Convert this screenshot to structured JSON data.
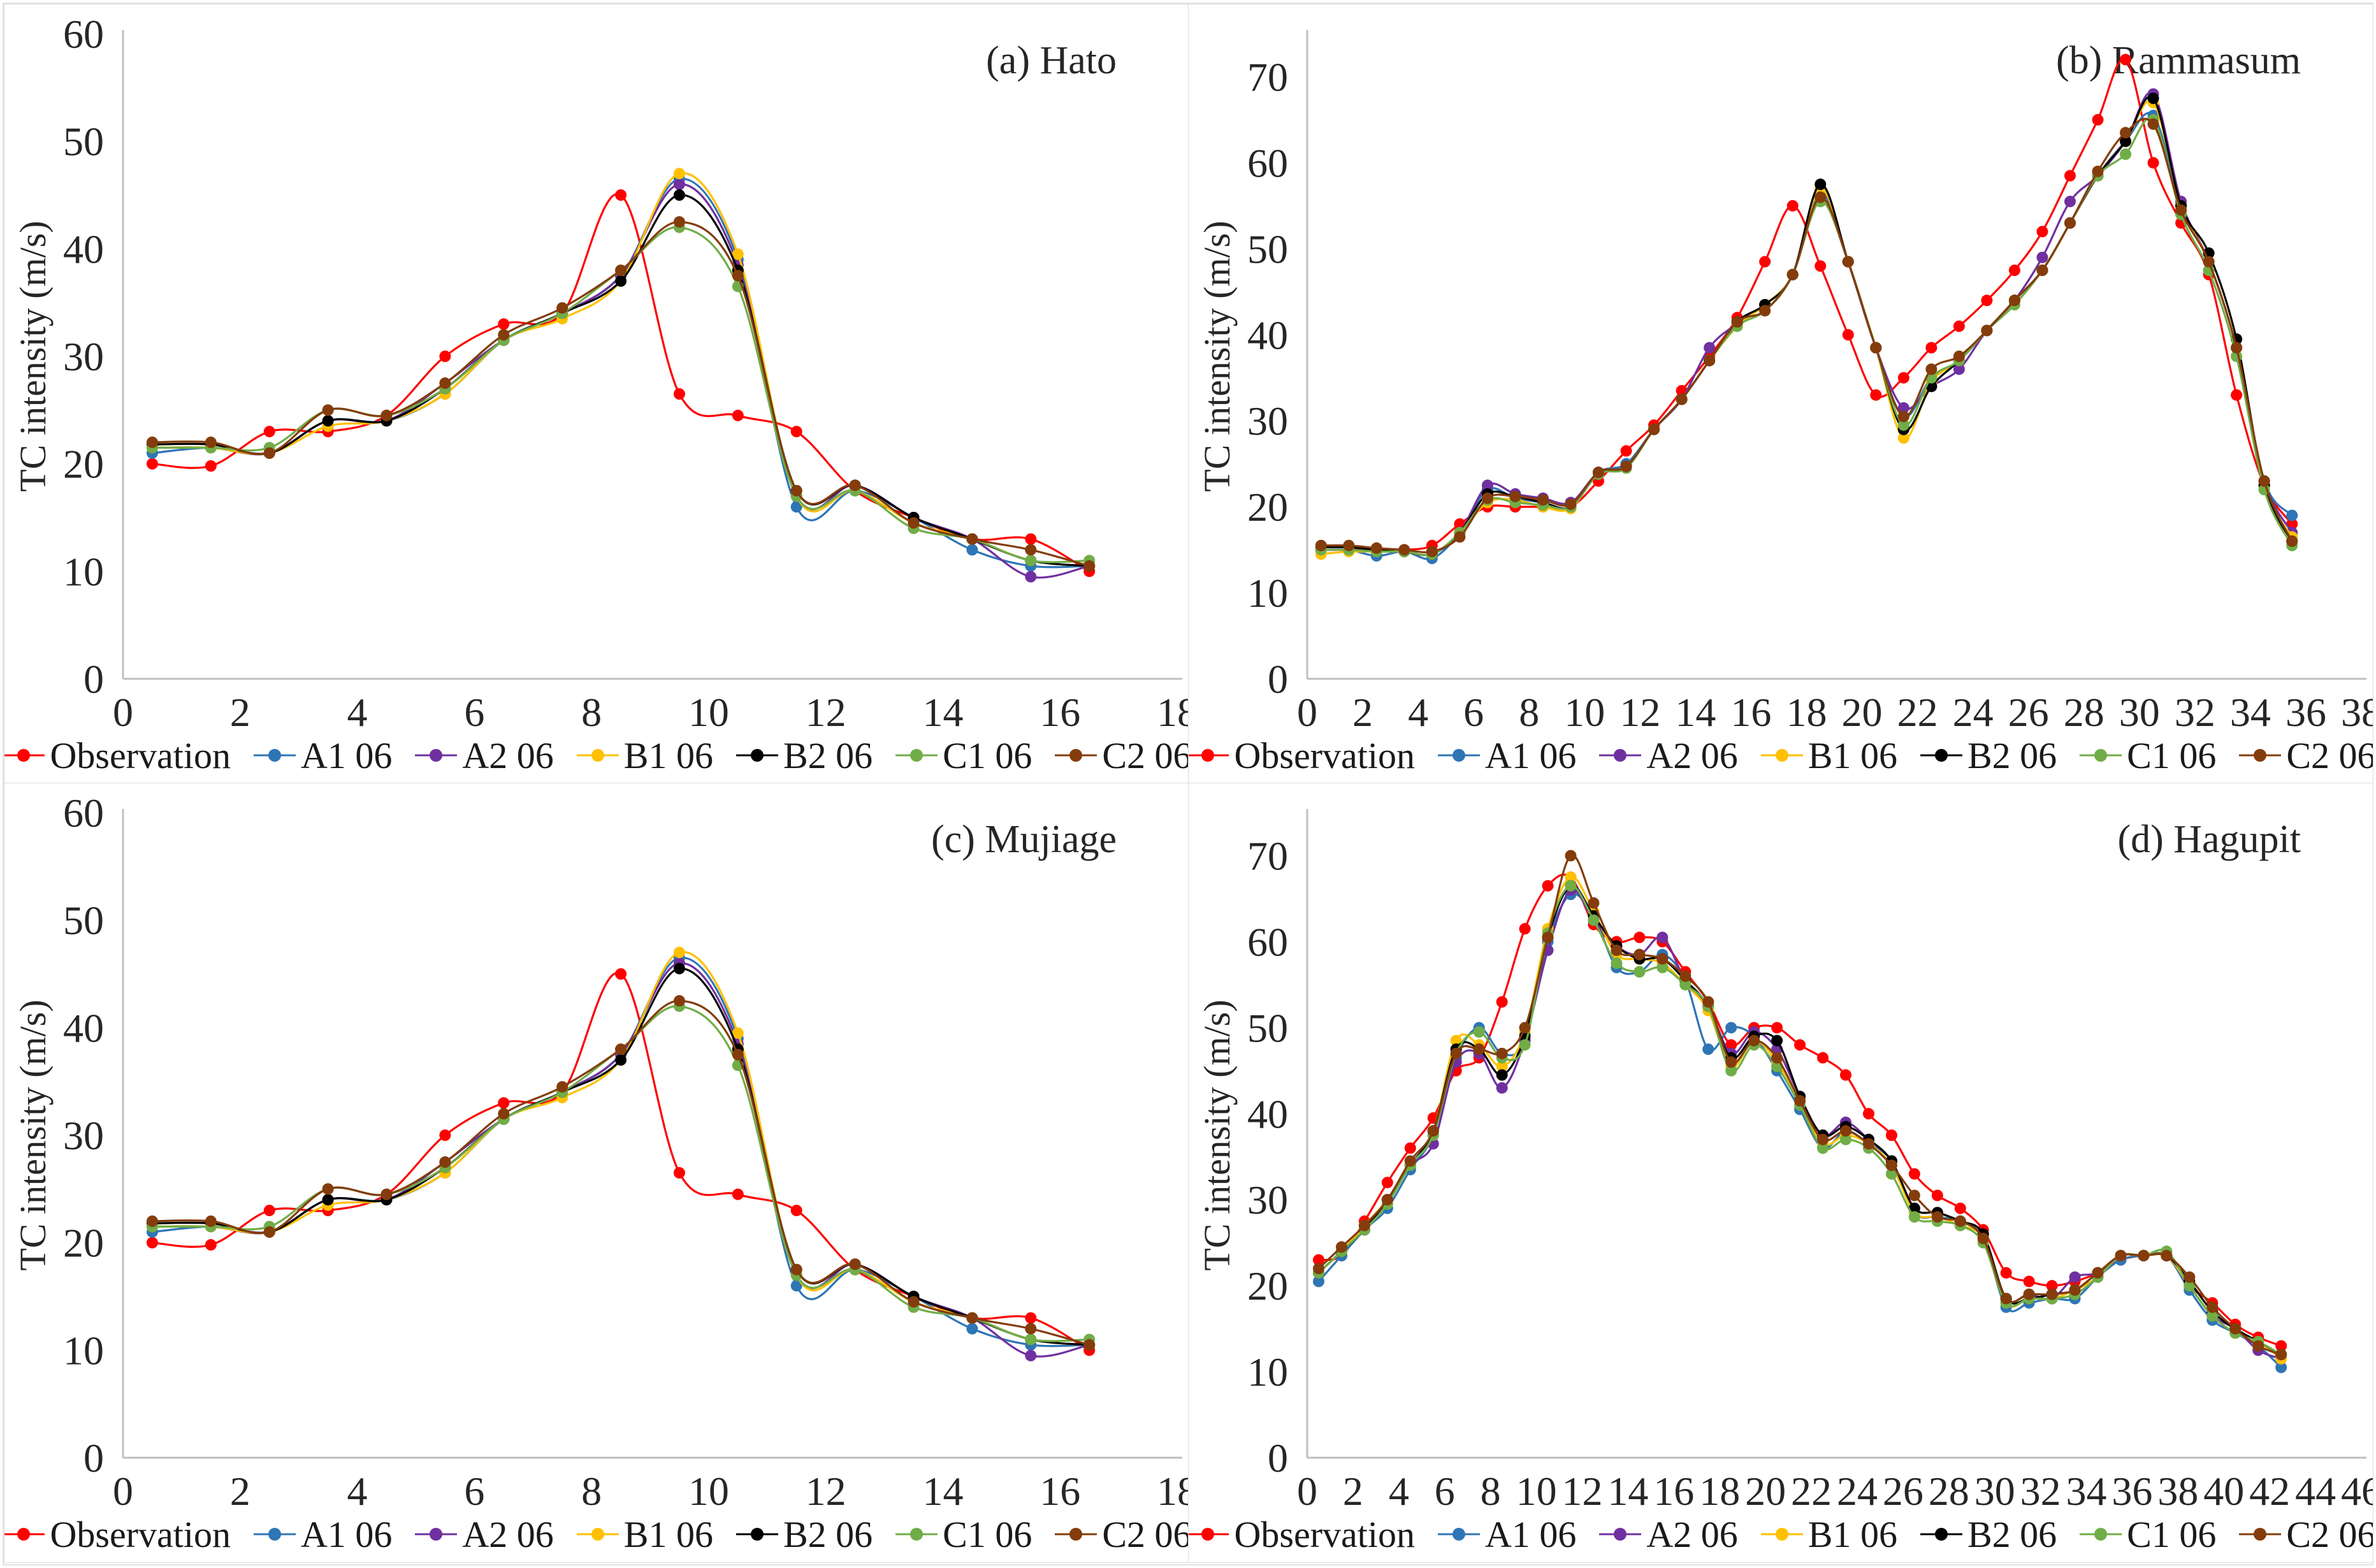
{
  "figure": {
    "background": "#ffffff",
    "border_color": "#dcdcdc",
    "axis_color": "#bfbfbf",
    "text_color": "#262626"
  },
  "chart_data": [
    {
      "id": "a",
      "type": "line",
      "title": "(a) Hato",
      "ylabel": "TC intensity (m/s)",
      "xlabel": "",
      "xlim": [
        0,
        18
      ],
      "ylim": [
        0,
        60
      ],
      "plot_ymax": 60,
      "xticks": [
        0,
        2,
        4,
        6,
        8,
        10,
        12,
        14,
        16,
        18
      ],
      "yticks": [
        0,
        10,
        20,
        30,
        40,
        50,
        60
      ],
      "grid": false,
      "legend_position": "bottom",
      "x_start": 1,
      "x_step": 1,
      "series": [
        {
          "name": "Observation",
          "color": "#FF0000",
          "values": [
            20,
            19.8,
            23,
            23,
            24.5,
            30,
            33,
            34,
            45,
            26.5,
            24.5,
            23,
            17.5,
            15,
            13,
            13,
            10
          ]
        },
        {
          "name": "A1 06",
          "color": "#2E75B6",
          "values": [
            21,
            21.5,
            21,
            24,
            24,
            26.5,
            31.5,
            34,
            37.5,
            46.5,
            39,
            16,
            17.5,
            15,
            12,
            10.5,
            10.5
          ]
        },
        {
          "name": "A2 06",
          "color": "#7030A0",
          "values": [
            21.5,
            21.5,
            21,
            24,
            24,
            27.5,
            31.5,
            34,
            37.5,
            46,
            38.5,
            17,
            18,
            15,
            13,
            9.5,
            10.5
          ]
        },
        {
          "name": "B1 06",
          "color": "#FFC000",
          "values": [
            21.5,
            21.5,
            21,
            23.5,
            24,
            26.5,
            31.5,
            33.5,
            37,
            47,
            39.5,
            17,
            17.5,
            14.5,
            13,
            11,
            10.5
          ]
        },
        {
          "name": "B2 06",
          "color": "#000000",
          "values": [
            21.8,
            21.8,
            21,
            24,
            24,
            27,
            31.5,
            34,
            37,
            45,
            38,
            17.5,
            18,
            15,
            13,
            11,
            10.5
          ]
        },
        {
          "name": "C1 06",
          "color": "#70AD47",
          "values": [
            21.5,
            21.5,
            21.5,
            25,
            24.5,
            27,
            31.5,
            34,
            38,
            42,
            36.5,
            17,
            17.5,
            14,
            13,
            11,
            11
          ]
        },
        {
          "name": "C2 06",
          "color": "#843C0C",
          "values": [
            22,
            22,
            21,
            25,
            24.5,
            27.5,
            32,
            34.5,
            38,
            42.5,
            37.5,
            17.5,
            18,
            14.5,
            13,
            12,
            10.5
          ]
        }
      ]
    },
    {
      "id": "b",
      "type": "line",
      "title": "(b) Rammasum",
      "ylabel": "TC intensity (m/s)",
      "xlabel": "",
      "xlim": [
        0,
        38
      ],
      "ylim": [
        0,
        70
      ],
      "plot_ymax": 75,
      "xticks": [
        0,
        2,
        4,
        6,
        8,
        10,
        12,
        14,
        16,
        18,
        20,
        22,
        24,
        26,
        28,
        30,
        32,
        34,
        36,
        38
      ],
      "yticks": [
        0,
        10,
        20,
        30,
        40,
        50,
        60,
        70
      ],
      "grid": false,
      "legend_position": "bottom",
      "x_start": 1,
      "x_step": 1,
      "series": [
        {
          "name": "Observation",
          "color": "#FF0000",
          "values": [
            15,
            15,
            15,
            15,
            15.5,
            18,
            20,
            20,
            20,
            20,
            23,
            26.5,
            29.5,
            33.5,
            37.5,
            42,
            48.5,
            55,
            48,
            40,
            33,
            35,
            38.5,
            41,
            44,
            47.5,
            52,
            58.5,
            65,
            72,
            60,
            53,
            47,
            33,
            22.5,
            18
          ]
        },
        {
          "name": "A1 06",
          "color": "#2E75B6",
          "values": [
            15,
            15,
            14.3,
            14.8,
            14,
            17,
            22,
            21,
            20.5,
            20,
            24,
            25,
            29,
            32.5,
            37,
            41.5,
            43.5,
            47,
            56.5,
            48.5,
            38.5,
            30.5,
            35,
            37,
            40.5,
            44,
            47.5,
            53,
            58.5,
            62.5,
            65.5,
            55,
            48.5,
            38.5,
            23,
            19
          ]
        },
        {
          "name": "A2 06",
          "color": "#7030A0",
          "values": [
            15,
            15,
            14.8,
            14.8,
            14.5,
            17,
            22.5,
            21.5,
            21,
            20.5,
            24,
            24.7,
            29,
            32.5,
            38.5,
            41.3,
            43.5,
            47,
            57,
            48.5,
            38.5,
            31.5,
            34,
            36,
            40.5,
            44,
            49,
            55.5,
            58.5,
            62.5,
            68,
            55.5,
            48.5,
            38.5,
            23,
            17
          ]
        },
        {
          "name": "B1 06",
          "color": "#FFC000",
          "values": [
            14.5,
            14.8,
            14.8,
            14.8,
            14.5,
            17,
            20.5,
            20.8,
            20,
            19.8,
            24,
            24.7,
            29,
            32.5,
            37,
            41,
            43.5,
            47,
            57,
            48.5,
            38.5,
            28,
            34.5,
            37,
            40.5,
            44,
            47.5,
            53,
            58.5,
            62.5,
            67,
            55,
            48.5,
            38.5,
            22.5,
            16.5
          ]
        },
        {
          "name": "B2 06",
          "color": "#000000",
          "values": [
            15.3,
            15.3,
            15,
            14.8,
            14.5,
            17,
            21.5,
            21.2,
            20.5,
            20,
            24,
            24.7,
            29,
            32.5,
            37,
            41.5,
            43.5,
            47,
            57.5,
            48.5,
            38.5,
            29,
            34,
            37,
            40.5,
            44,
            47.5,
            53,
            58.5,
            62.5,
            67.5,
            55,
            49.5,
            39.5,
            22.5,
            16
          ]
        },
        {
          "name": "C1 06",
          "color": "#70AD47",
          "values": [
            15,
            15,
            14.8,
            14.8,
            14.5,
            17,
            20.8,
            20.5,
            20.2,
            20,
            23.8,
            24.5,
            29,
            32.5,
            37,
            41,
            42.8,
            47,
            55.5,
            48.5,
            38.5,
            29.5,
            35,
            37,
            40.5,
            43.5,
            47.5,
            53,
            58.5,
            61,
            65,
            54,
            47.5,
            37.5,
            22,
            15.5
          ]
        },
        {
          "name": "C2 06",
          "color": "#843C0C",
          "values": [
            15.5,
            15.5,
            15.2,
            15,
            14.8,
            16.5,
            21,
            21.2,
            20.8,
            20.3,
            24,
            24.7,
            29,
            32.5,
            37,
            41.5,
            42.8,
            47,
            56,
            48.5,
            38.5,
            30.5,
            36,
            37.5,
            40.5,
            44,
            47.5,
            53,
            59,
            63.5,
            64.5,
            54.5,
            48.5,
            38.5,
            23,
            16
          ]
        }
      ]
    },
    {
      "id": "c",
      "type": "line",
      "title": "(c) Mujiage",
      "ylabel": "TC intensity (m/s)",
      "xlabel": "",
      "xlim": [
        0,
        18
      ],
      "ylim": [
        0,
        60
      ],
      "plot_ymax": 60,
      "xticks": [
        0,
        2,
        4,
        6,
        8,
        10,
        12,
        14,
        16,
        18
      ],
      "yticks": [
        0,
        10,
        20,
        30,
        40,
        50,
        60
      ],
      "grid": false,
      "legend_position": "bottom",
      "x_start": 1,
      "x_step": 1,
      "series": [
        {
          "name": "Observation",
          "color": "#FF0000",
          "values": [
            20,
            19.8,
            23,
            23,
            24.5,
            30,
            33,
            34,
            45,
            26.5,
            24.5,
            23,
            17.5,
            15,
            13,
            13,
            10
          ]
        },
        {
          "name": "A1 06",
          "color": "#2E75B6",
          "values": [
            21,
            21.5,
            21,
            24,
            24,
            26.5,
            31.5,
            34,
            37.5,
            46.5,
            39,
            16,
            17.5,
            15,
            12,
            10.5,
            10.5
          ]
        },
        {
          "name": "A2 06",
          "color": "#7030A0",
          "values": [
            21.5,
            21.5,
            21,
            24,
            24,
            27.5,
            31.5,
            34,
            37.5,
            46,
            38.5,
            17,
            18,
            15,
            13,
            9.5,
            10.5
          ]
        },
        {
          "name": "B1 06",
          "color": "#FFC000",
          "values": [
            21.5,
            21.5,
            21,
            23.5,
            24,
            26.5,
            31.5,
            33.5,
            37,
            47,
            39.5,
            17,
            17.5,
            14.5,
            13,
            11,
            10.5
          ]
        },
        {
          "name": "B2 06",
          "color": "#000000",
          "values": [
            21.8,
            21.8,
            21,
            24,
            24,
            27,
            31.5,
            34,
            37,
            45.5,
            38,
            17.5,
            18,
            15,
            13,
            11,
            10.5
          ]
        },
        {
          "name": "C1 06",
          "color": "#70AD47",
          "values": [
            21.5,
            21.5,
            21.5,
            25,
            24.5,
            27,
            31.5,
            34,
            38,
            42,
            36.5,
            17,
            17.5,
            14,
            13,
            11,
            11
          ]
        },
        {
          "name": "C2 06",
          "color": "#843C0C",
          "values": [
            22,
            22,
            21,
            25,
            24.5,
            27.5,
            32,
            34.5,
            38,
            42.5,
            37.5,
            17.5,
            18,
            14.5,
            13,
            12,
            10.5
          ]
        }
      ]
    },
    {
      "id": "d",
      "type": "line",
      "title": "(d) Hagupit",
      "ylabel": "TC intensity (m/s)",
      "xlabel": "",
      "xlim": [
        0,
        46
      ],
      "ylim": [
        0,
        70
      ],
      "plot_ymax": 75,
      "xticks": [
        0,
        2,
        4,
        6,
        8,
        10,
        12,
        14,
        16,
        18,
        20,
        22,
        24,
        26,
        28,
        30,
        32,
        34,
        36,
        38,
        40,
        42,
        44,
        46
      ],
      "yticks": [
        0,
        10,
        20,
        30,
        40,
        50,
        60,
        70
      ],
      "grid": false,
      "legend_position": "bottom",
      "x_start": 1,
      "x_step": 1,
      "series": [
        {
          "name": "Observation",
          "color": "#FF0000",
          "values": [
            23,
            23.5,
            27.5,
            32,
            36,
            39.5,
            45,
            46.5,
            53,
            61.5,
            66.5,
            67.5,
            62,
            60,
            60.5,
            60,
            56.5,
            53,
            48,
            50,
            50,
            48,
            46.5,
            44.5,
            40,
            37.5,
            33,
            30.5,
            29,
            26.5,
            21.5,
            20.5,
            20,
            20.5,
            21.5,
            23,
            23.5,
            23.5,
            20,
            18,
            15.5,
            14,
            13
          ]
        },
        {
          "name": "A1 06",
          "color": "#2E75B6",
          "values": [
            20.5,
            23.5,
            26.5,
            29,
            33.5,
            37.5,
            46.5,
            50,
            47,
            48.5,
            60,
            65.5,
            63,
            57,
            56.5,
            58.5,
            55.5,
            47.5,
            50,
            49,
            45,
            40.5,
            36,
            38,
            36.5,
            34.5,
            28.5,
            28,
            27.5,
            25.5,
            17.5,
            18,
            18.5,
            18.5,
            21,
            23,
            23.5,
            23.5,
            19.5,
            16,
            14.5,
            13,
            10.5
          ]
        },
        {
          "name": "A2 06",
          "color": "#7030A0",
          "values": [
            21.5,
            24,
            26.5,
            30,
            34,
            36.5,
            46,
            47,
            43,
            48.5,
            59,
            66,
            62.5,
            59.5,
            58.5,
            60.5,
            55.5,
            52.5,
            47,
            49.5,
            47.5,
            42,
            37.5,
            39,
            37,
            34.5,
            29,
            28.5,
            27.5,
            26,
            18.5,
            19,
            18.5,
            21,
            21.5,
            23.5,
            23.5,
            23.5,
            20,
            16.5,
            15,
            12.5,
            11.5
          ]
        },
        {
          "name": "B1 06",
          "color": "#FFC000",
          "values": [
            21.5,
            24,
            27,
            30,
            34,
            38,
            48.5,
            48,
            45.5,
            49.5,
            61.5,
            67.5,
            63.5,
            58.5,
            58,
            57.5,
            55,
            52,
            45.5,
            48.5,
            46,
            41.5,
            36.5,
            37.5,
            36.5,
            34,
            28.5,
            28,
            27,
            25.5,
            18,
            18.5,
            18.5,
            19.5,
            21,
            23.5,
            23.5,
            23.5,
            20,
            16.5,
            14.5,
            13.5,
            11.5
          ]
        },
        {
          "name": "B2 06",
          "color": "#000000",
          "values": [
            21.5,
            24,
            26.5,
            30,
            34,
            38,
            47.5,
            47.5,
            44.5,
            49,
            60.5,
            66.5,
            63,
            59.5,
            58,
            58,
            55.5,
            52.5,
            46.5,
            49,
            48.5,
            42,
            37.5,
            38.5,
            37,
            34.5,
            29,
            28.5,
            27.5,
            26,
            18.5,
            18.5,
            19,
            19.5,
            21.5,
            23.5,
            23.5,
            23.5,
            20.5,
            17,
            15,
            13.5,
            12
          ]
        },
        {
          "name": "C1 06",
          "color": "#70AD47",
          "values": [
            21.5,
            24,
            26.5,
            29.5,
            34,
            37.5,
            47,
            49.5,
            46.5,
            48,
            61,
            66.5,
            62.5,
            57.5,
            56.5,
            57,
            55,
            52.5,
            45,
            48,
            45.5,
            41,
            36,
            37,
            36,
            33,
            28,
            27.5,
            27,
            25,
            18,
            18.5,
            18.5,
            19,
            21,
            23.5,
            23.5,
            24,
            20,
            16.5,
            14.5,
            13.5,
            12
          ]
        },
        {
          "name": "C2 06",
          "color": "#843C0C",
          "values": [
            22,
            24.5,
            27,
            30,
            34.5,
            38,
            47,
            47.5,
            47,
            50,
            60.5,
            70,
            64.5,
            59,
            58.5,
            58,
            56,
            53,
            46,
            48.5,
            46.5,
            41.5,
            37,
            38,
            36.5,
            34,
            30.5,
            28,
            27.5,
            25.5,
            18.5,
            19,
            19,
            19.5,
            21.5,
            23.5,
            23.5,
            23.5,
            21,
            17.5,
            15,
            13,
            12
          ]
        }
      ]
    }
  ]
}
